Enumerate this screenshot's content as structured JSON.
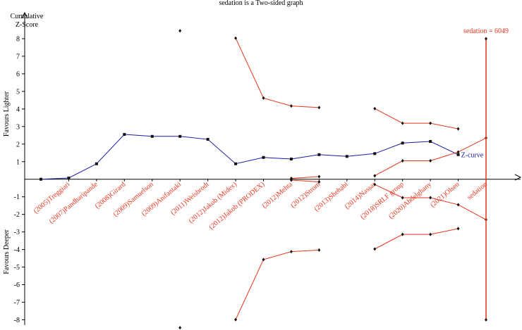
{
  "chart_data": {
    "type": "line",
    "title": "sedation is a Two-sided graph",
    "y_label": "Cumulative Z-Score",
    "annotations": [
      "Favours Lighter",
      "Favours Deeper"
    ],
    "categories": [
      null,
      "(2005)Treggiari",
      "(2007)Pandharipande",
      "(2008)Girard",
      "(2009)Samuelson",
      "(2009)Anifantaki",
      "(2011)Weisbrodt",
      "(2012)Jakob (Midex)",
      "(2012)Jakob (PRODEX)",
      "(2012)Mehta",
      "(2012)Strom",
      "(2013)Shehabi",
      "(2014)Nassar",
      "(2018)SRLF group",
      "(2020)Abdelghany",
      "(2021)Olsen",
      "sedation"
    ],
    "ylim": [
      -8.3,
      9
    ],
    "yticks": [
      -8,
      -7,
      -6,
      -5,
      -4,
      -3,
      -2,
      -1,
      1,
      2,
      3,
      4,
      5,
      6,
      7,
      8
    ],
    "label_color": "#e8341c",
    "series": [
      {
        "name": "Z-curve",
        "color": "#1a1aa8",
        "values": [
          0,
          0.07,
          0.88,
          2.55,
          2.44,
          2.44,
          2.27,
          0.88,
          1.24,
          1.15,
          1.4,
          1.3,
          1.46,
          2.06,
          2.15,
          1.4,
          null
        ]
      },
      {
        "color": "#e8341c",
        "values": [
          null,
          null,
          null,
          null,
          null,
          8.45,
          null,
          8.03,
          4.62,
          4.17,
          4.08,
          null,
          4.02,
          3.19,
          3.19,
          2.87,
          null
        ]
      },
      {
        "color": "#e8341c",
        "values": [
          null,
          null,
          null,
          null,
          null,
          -8.45,
          null,
          -7.99,
          -4.57,
          -4.12,
          -4.03,
          null,
          -3.97,
          -3.14,
          -3.14,
          -2.81,
          null
        ]
      },
      {
        "color": "#e8341c",
        "values": [
          null,
          null,
          null,
          null,
          null,
          null,
          null,
          null,
          null,
          0.05,
          0.15,
          null,
          0.2,
          1.05,
          1.05,
          1.55,
          2.35
        ]
      },
      {
        "color": "#e8341c",
        "values": [
          null,
          null,
          null,
          null,
          null,
          null,
          null,
          null,
          null,
          -0.05,
          -0.15,
          null,
          -0.3,
          -1.05,
          -1.05,
          -1.45,
          -2.3
        ]
      }
    ],
    "ris": {
      "label": "sedation = 6049",
      "color": "#e8341c",
      "values": [
        8,
        -8
      ]
    }
  }
}
